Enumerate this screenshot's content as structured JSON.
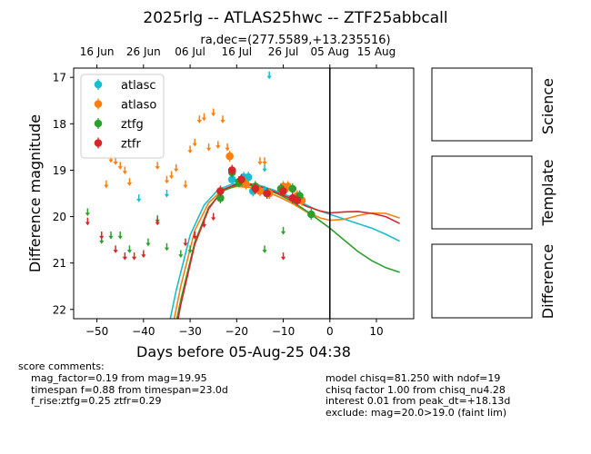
{
  "chart_data": {
    "type": "scatter",
    "title": "2025rlg -- ATLAS25hwc -- ZTF25abbcall",
    "subtitle": "ra,dec=(277.5589,+13.235516)",
    "xlabel": "Days before 05-Aug-25 04:38",
    "ylabel": "Difference magnitude",
    "xlim": [
      -55,
      18
    ],
    "ylim": [
      22.2,
      16.8
    ],
    "y_inverted": true,
    "x_ticks": [
      -50,
      -40,
      -30,
      -20,
      -10,
      0,
      10
    ],
    "x_tick_labels": [
      "−50",
      "−40",
      "−30",
      "−20",
      "−10",
      "0",
      "10"
    ],
    "y_ticks": [
      17,
      18,
      19,
      20,
      21,
      22
    ],
    "y_tick_labels": [
      "17",
      "18",
      "19",
      "20",
      "21",
      "22"
    ],
    "top_axis_ticks": [
      {
        "x": -50,
        "label": "16 Jun"
      },
      {
        "x": -40,
        "label": "26 Jun"
      },
      {
        "x": -30,
        "label": "06 Jul"
      },
      {
        "x": -20,
        "label": "16 Jul"
      },
      {
        "x": -10,
        "label": "26 Jul"
      },
      {
        "x": 0,
        "label": "05 Aug"
      },
      {
        "x": 10,
        "label": "15 Aug"
      }
    ],
    "vline_x": 0,
    "legend_position": "upper-left",
    "series": [
      {
        "name": "atlasc",
        "color": "#17becf",
        "points": [
          [
            -21,
            19.2
          ],
          [
            -18.5,
            19.15
          ],
          [
            -17.5,
            19.15
          ],
          [
            -16.5,
            19.45
          ],
          [
            -14,
            19.45
          ],
          [
            -13,
            19.5
          ]
        ],
        "upper_limits": [
          [
            -41,
            19.6
          ],
          [
            -35,
            19.5
          ],
          [
            -14,
            18.95
          ],
          [
            -13,
            16.95
          ]
        ],
        "model": [
          [
            -37,
            23.5
          ],
          [
            -33,
            21.6
          ],
          [
            -30,
            20.4
          ],
          [
            -27,
            19.75
          ],
          [
            -24,
            19.42
          ],
          [
            -21,
            19.3
          ],
          [
            -18,
            19.28
          ],
          [
            -15,
            19.33
          ],
          [
            -12,
            19.43
          ],
          [
            -9,
            19.55
          ],
          [
            -6,
            19.7
          ],
          [
            -3,
            19.85
          ],
          [
            0,
            19.95
          ],
          [
            3,
            20.05
          ],
          [
            6,
            20.15
          ],
          [
            9,
            20.25
          ],
          [
            12,
            20.38
          ],
          [
            15,
            20.53
          ]
        ]
      },
      {
        "name": "atlaso",
        "color": "#ff7f0e",
        "points": [
          [
            -19,
            19.25
          ],
          [
            -18,
            19.3
          ],
          [
            -15,
            19.45
          ],
          [
            -13,
            19.5
          ],
          [
            -10,
            19.35
          ],
          [
            -9,
            19.35
          ],
          [
            -7,
            19.55
          ],
          [
            -6,
            19.65
          ],
          [
            -21.5,
            18.7
          ]
        ],
        "upper_limits": [
          [
            -48,
            19.3
          ],
          [
            -47,
            18.75
          ],
          [
            -46,
            18.8
          ],
          [
            -45,
            18.9
          ],
          [
            -44,
            19.0
          ],
          [
            -43,
            19.25
          ],
          [
            -37,
            18.9
          ],
          [
            -35,
            19.2
          ],
          [
            -34,
            19.1
          ],
          [
            -33,
            18.95
          ],
          [
            -31,
            19.3
          ],
          [
            -30,
            18.55
          ],
          [
            -29,
            18.4
          ],
          [
            -28,
            17.9
          ],
          [
            -27,
            17.85
          ],
          [
            -26,
            18.5
          ],
          [
            -25,
            17.75
          ],
          [
            -24,
            18.45
          ],
          [
            -23,
            17.9
          ],
          [
            -22,
            18.5
          ],
          [
            -15,
            18.8
          ],
          [
            -14,
            18.8
          ]
        ],
        "model": [
          [
            -36,
            23.5
          ],
          [
            -32,
            21.5
          ],
          [
            -29,
            20.3
          ],
          [
            -26,
            19.7
          ],
          [
            -23,
            19.42
          ],
          [
            -20,
            19.35
          ],
          [
            -17,
            19.37
          ],
          [
            -14,
            19.45
          ],
          [
            -11,
            19.57
          ],
          [
            -8,
            19.72
          ],
          [
            -5,
            19.9
          ],
          [
            -2,
            20.03
          ],
          [
            0,
            20.08
          ],
          [
            3,
            20.06
          ],
          [
            6,
            19.98
          ],
          [
            9,
            19.92
          ],
          [
            12,
            19.93
          ],
          [
            15,
            20.03
          ]
        ]
      },
      {
        "name": "ztfg",
        "color": "#2ca02c",
        "points": [
          [
            -23.5,
            19.6
          ],
          [
            -21,
            19.05
          ],
          [
            -19.5,
            19.25
          ],
          [
            -16,
            19.35
          ],
          [
            -13.5,
            19.5
          ],
          [
            -10.5,
            19.4
          ],
          [
            -8,
            19.4
          ],
          [
            -6.5,
            19.55
          ],
          [
            -4,
            19.95
          ]
        ],
        "upper_limits": [
          [
            -52,
            19.9
          ],
          [
            -49,
            20.5
          ],
          [
            -47,
            20.4
          ],
          [
            -45,
            20.4
          ],
          [
            -43,
            20.7
          ],
          [
            -39,
            20.55
          ],
          [
            -37,
            20.05
          ],
          [
            -35,
            20.65
          ],
          [
            -32,
            20.8
          ],
          [
            -30,
            20.7
          ],
          [
            -10,
            20.3
          ],
          [
            -14,
            20.7
          ]
        ],
        "model": [
          [
            -35.5,
            23.5
          ],
          [
            -32,
            21.8
          ],
          [
            -29,
            20.55
          ],
          [
            -26,
            19.8
          ],
          [
            -23,
            19.45
          ],
          [
            -20,
            19.33
          ],
          [
            -17,
            19.33
          ],
          [
            -14,
            19.4
          ],
          [
            -11,
            19.52
          ],
          [
            -8,
            19.68
          ],
          [
            -5,
            19.88
          ],
          [
            -2,
            20.1
          ],
          [
            0,
            20.25
          ],
          [
            3,
            20.5
          ],
          [
            6,
            20.75
          ],
          [
            9,
            20.95
          ],
          [
            12,
            21.1
          ],
          [
            15,
            21.2
          ]
        ]
      },
      {
        "name": "ztfr",
        "color": "#d62728",
        "points": [
          [
            -23.5,
            19.45
          ],
          [
            -21,
            19.0
          ],
          [
            -19,
            19.2
          ],
          [
            -16,
            19.4
          ],
          [
            -13.5,
            19.5
          ],
          [
            -10,
            19.45
          ],
          [
            -8,
            19.6
          ],
          [
            -7,
            19.65
          ]
        ],
        "upper_limits": [
          [
            -52,
            20.1
          ],
          [
            -49,
            20.4
          ],
          [
            -46,
            20.7
          ],
          [
            -44,
            20.85
          ],
          [
            -42,
            20.85
          ],
          [
            -40,
            20.8
          ],
          [
            -37,
            20.1
          ],
          [
            -31,
            20.55
          ],
          [
            -29,
            20.4
          ],
          [
            -27,
            20.15
          ],
          [
            -25,
            20.0
          ],
          [
            -10,
            20.85
          ]
        ],
        "model": [
          [
            -35,
            23.5
          ],
          [
            -32,
            21.9
          ],
          [
            -29,
            20.6
          ],
          [
            -26,
            19.83
          ],
          [
            -23,
            19.42
          ],
          [
            -20,
            19.3
          ],
          [
            -17,
            19.3
          ],
          [
            -14,
            19.38
          ],
          [
            -11,
            19.5
          ],
          [
            -8,
            19.63
          ],
          [
            -5,
            19.78
          ],
          [
            -2,
            19.88
          ],
          [
            0,
            19.92
          ],
          [
            3,
            19.9
          ],
          [
            6,
            19.89
          ],
          [
            9,
            19.93
          ],
          [
            12,
            20.0
          ],
          [
            15,
            20.15
          ]
        ]
      }
    ]
  },
  "side_panels": [
    {
      "label": "Science"
    },
    {
      "label": "Template"
    },
    {
      "label": "Difference"
    }
  ],
  "comments_left": {
    "heading": "score comments:",
    "lines": [
      "mag_factor=0.19 from mag=19.95",
      "timespan f=0.88 from timespan=23.0d",
      "f_rise:ztfg=0.25 ztfr=0.29"
    ]
  },
  "comments_right": {
    "lines": [
      "model chisq=81.250 with ndof=19",
      "chisq factor 1.00 from chisq_nu4.28",
      "interest 0.01 from peak_dt=+18.13d",
      "exclude: mag=20.0>19.0 (faint lim)"
    ]
  }
}
